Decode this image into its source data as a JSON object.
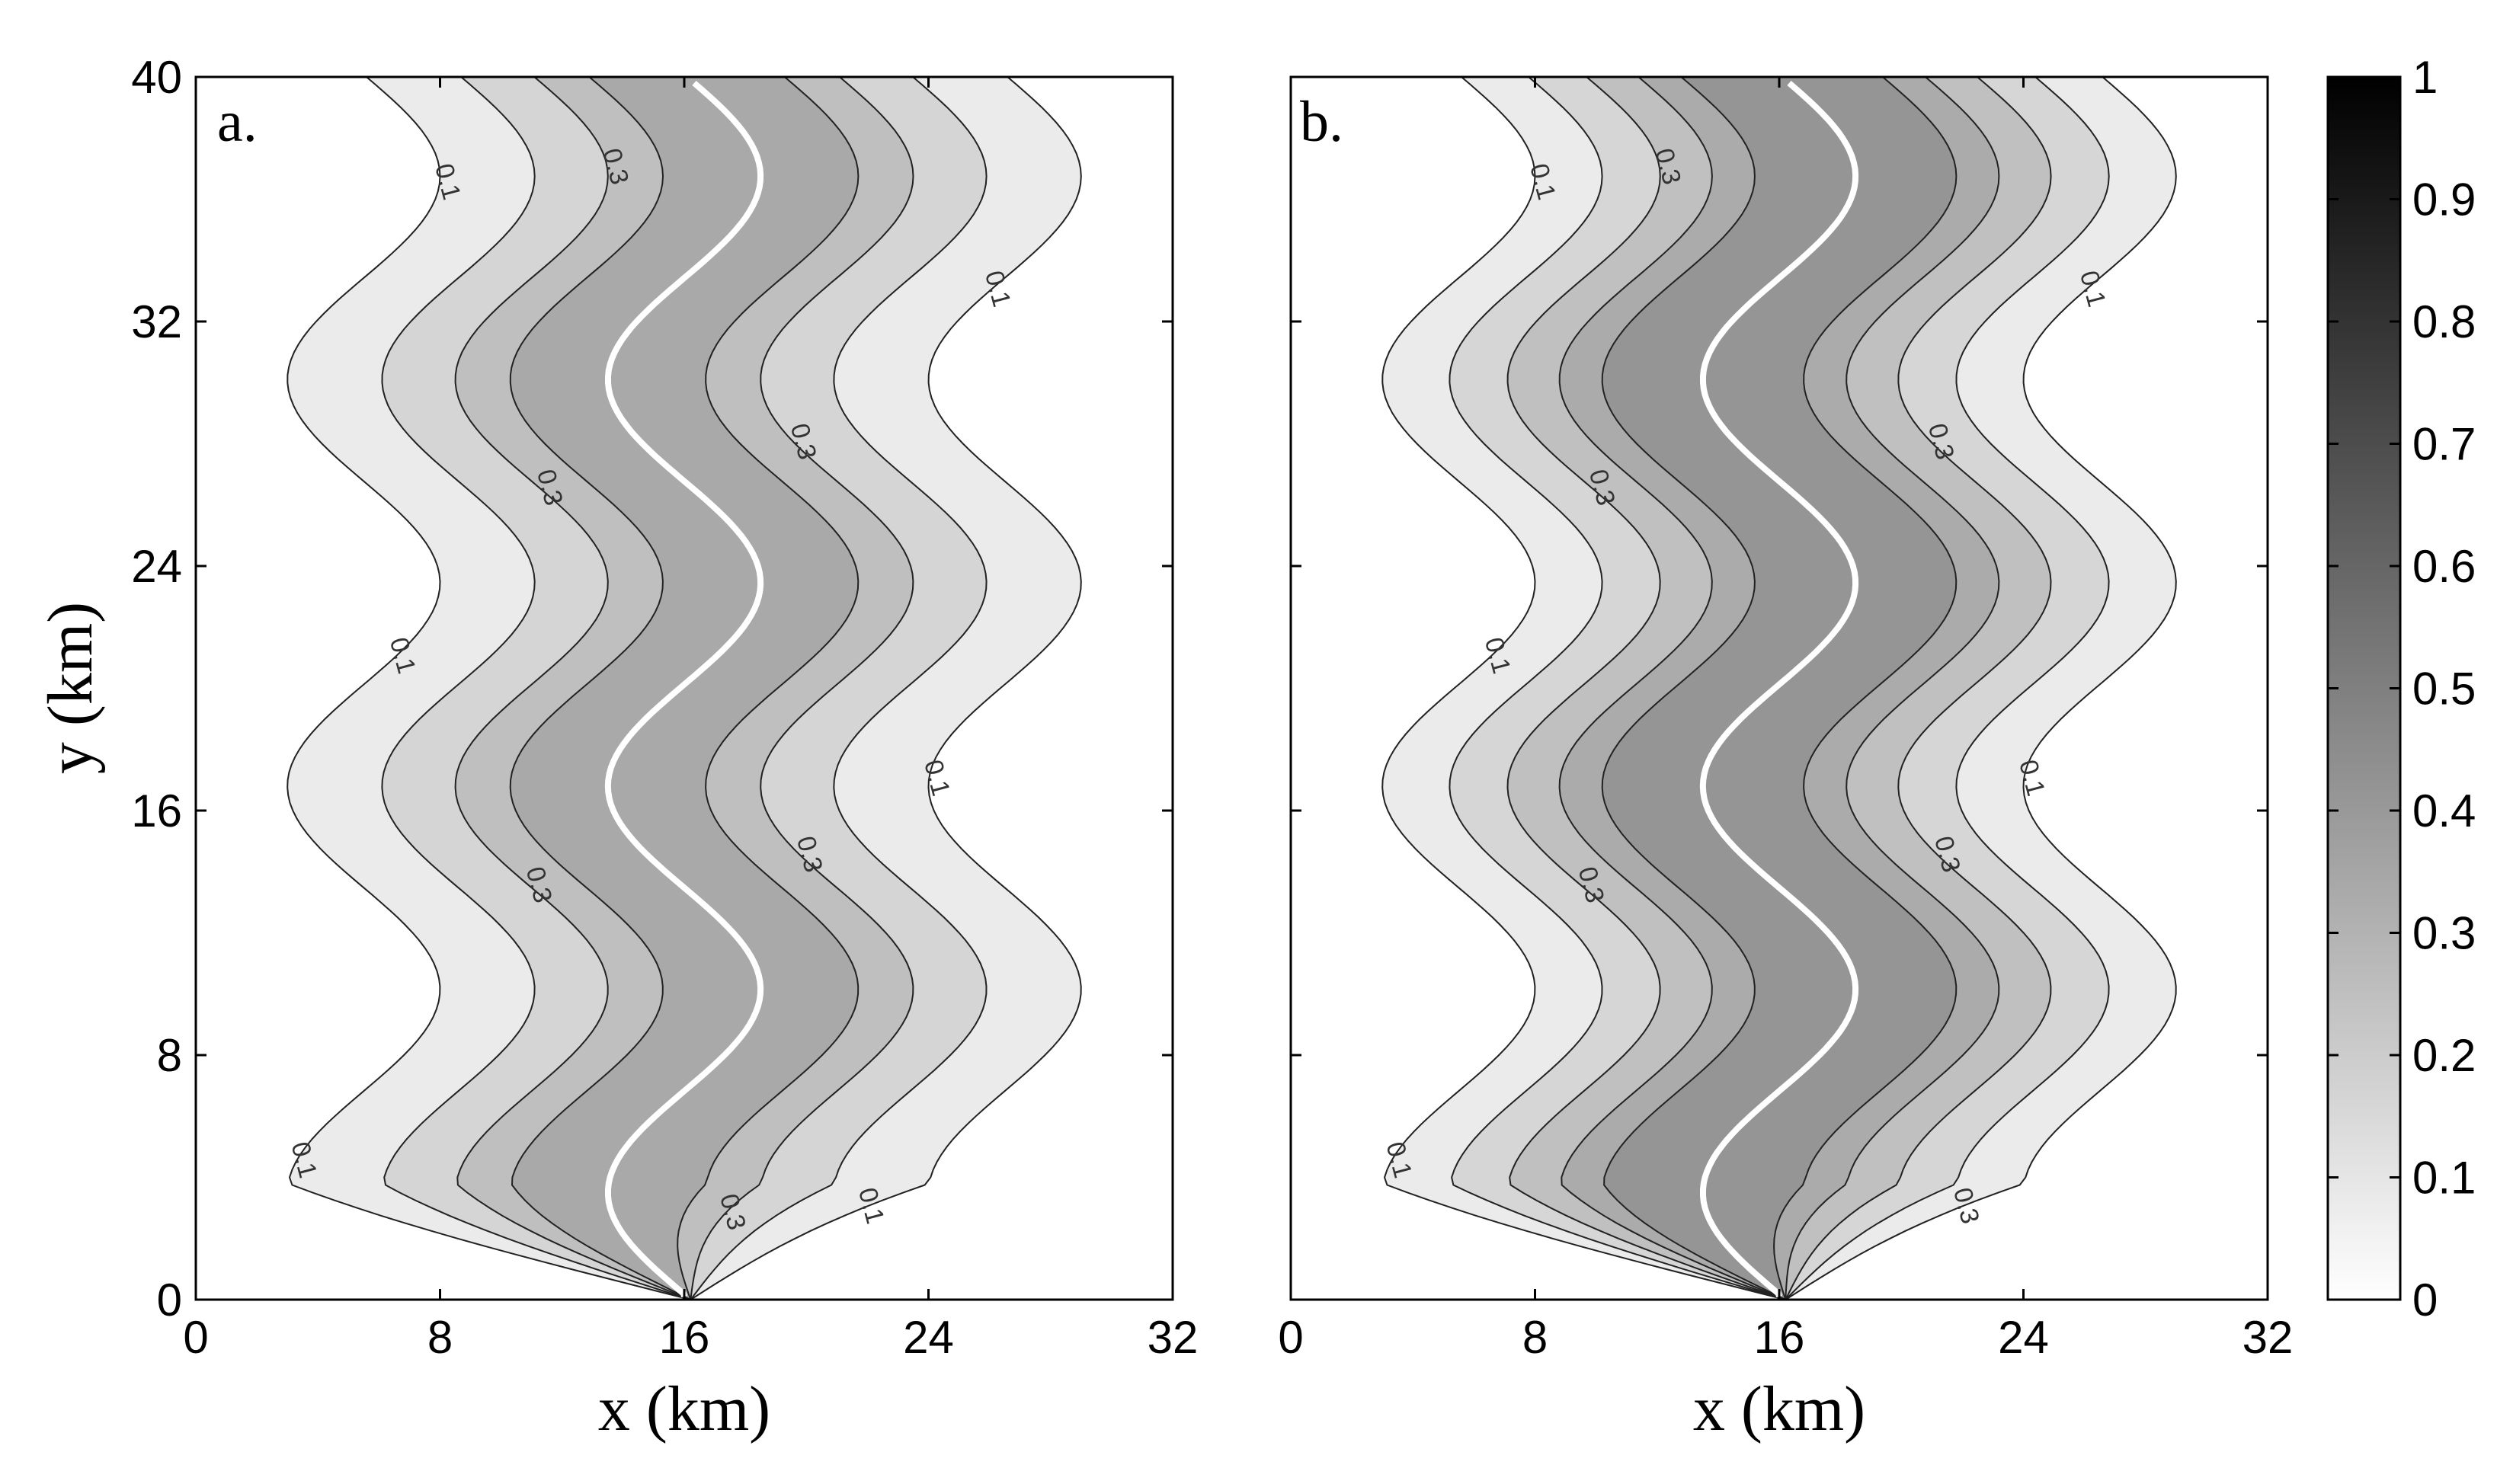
{
  "chart_data": [
    {
      "type": "contour",
      "panel_label": "a.",
      "xlabel": "x (km)",
      "ylabel": "y (km)",
      "xlim": [
        0,
        32
      ],
      "ylim": [
        0,
        40
      ],
      "xticks": [
        0,
        8,
        16,
        24,
        32
      ],
      "yticks": [
        0,
        8,
        16,
        24,
        32,
        40
      ],
      "contour_levels": [
        0.1,
        0.2,
        0.3,
        0.4
      ],
      "contour_labels": [
        "0.1",
        "0.1",
        "0.1",
        "0.1",
        "0.1",
        "0.1",
        "0.3",
        "0.3",
        "0.3",
        "0.3",
        "0.3",
        "0.3"
      ],
      "centerline": {
        "x0": 16,
        "amplitude": 2.5,
        "wavelength": 13.3,
        "peak_y": [
          3.5,
          10,
          16.7,
          23.3,
          30,
          36.7
        ]
      },
      "half_widths_km": [
        10.5,
        7.4,
        5.0,
        3.2
      ],
      "grid": false,
      "colors": {
        "max_fill": "#a9a9a9",
        "min_fill": "#ebebeb",
        "centerline": "#ffffff"
      }
    },
    {
      "type": "contour",
      "panel_label": "b.",
      "xlabel": "x (km)",
      "xlim": [
        0,
        32
      ],
      "ylim": [
        0,
        40
      ],
      "xticks": [
        0,
        8,
        16,
        24,
        32
      ],
      "contour_levels": [
        0.1,
        0.2,
        0.3,
        0.4,
        0.5
      ],
      "contour_labels": [
        "0.1",
        "0.1",
        "0.1",
        "0.1",
        "0.1",
        "0.3",
        "0.3",
        "0.3",
        "0.3",
        "0.3",
        "0.3"
      ],
      "centerline": {
        "x0": 16,
        "amplitude": 2.5,
        "wavelength": 13.3,
        "peak_y": [
          3.5,
          10,
          16.7,
          23.3,
          30,
          36.7
        ]
      },
      "half_widths_km": [
        10.5,
        8.3,
        6.4,
        4.7,
        3.3
      ],
      "grid": false,
      "colors": {
        "max_fill": "#959595",
        "min_fill": "#ebebeb",
        "centerline": "#ffffff"
      }
    }
  ],
  "colorbar": {
    "ticks": [
      "0",
      "0.1",
      "0.2",
      "0.3",
      "0.4",
      "0.5",
      "0.6",
      "0.7",
      "0.8",
      "0.9",
      "1"
    ],
    "min_color": "#ffffff",
    "max_color": "#000000"
  }
}
